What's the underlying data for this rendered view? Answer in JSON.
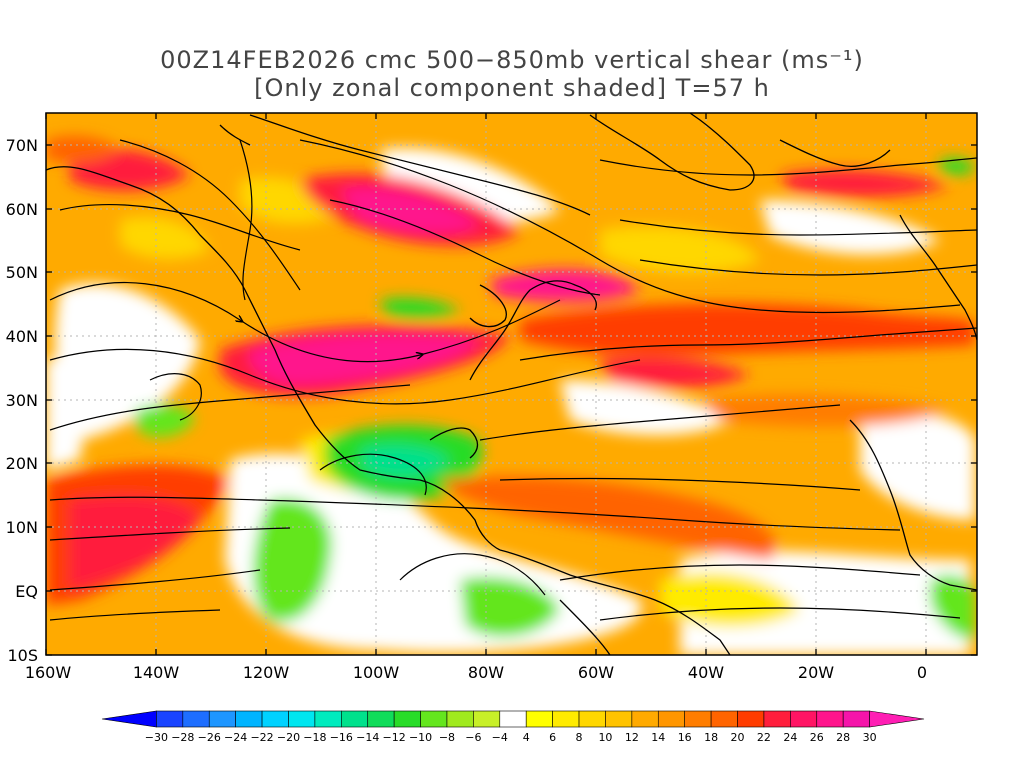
{
  "title_line1": "00Z14FEB2026 cmc 500−850mb vertical shear (ms⁻¹)",
  "title_line2": "[Only zonal component shaded] T=57 h",
  "lat_labels": [
    "70N",
    "60N",
    "50N",
    "40N",
    "30N",
    "20N",
    "10N",
    "EQ",
    "10S"
  ],
  "lon_labels": [
    "160W",
    "140W",
    "120W",
    "100W",
    "80W",
    "60W",
    "40W",
    "20W",
    "0"
  ],
  "colorbar": {
    "tick_labels": [
      "−30",
      "−28",
      "−26",
      "−24",
      "−22",
      "−20",
      "−18",
      "−16",
      "−14",
      "−12",
      "−10",
      "−8",
      "−6",
      "−4",
      "4",
      "6",
      "8",
      "10",
      "12",
      "14",
      "16",
      "18",
      "20",
      "22",
      "24",
      "26",
      "28",
      "30"
    ],
    "colors": [
      "#0000ff",
      "#1a44ff",
      "#1e6eff",
      "#1e96ff",
      "#00b4ff",
      "#00d2ff",
      "#00e6f0",
      "#00ebbe",
      "#00e18c",
      "#10dc5a",
      "#28dc28",
      "#64e61e",
      "#a0ea1e",
      "#c8f028",
      "#ffffff",
      "#ffff00",
      "#ffeb00",
      "#ffd700",
      "#ffc300",
      "#ffaa00",
      "#ff9600",
      "#ff7d00",
      "#ff6400",
      "#ff3c00",
      "#ff1e3c",
      "#ff1464",
      "#ff148c",
      "#f514aa",
      "#ff1eb4"
    ]
  },
  "colors": {
    "frame": "#000000",
    "grid": "#b4b4b4",
    "coast": "#000000",
    "title": "#444444"
  }
}
